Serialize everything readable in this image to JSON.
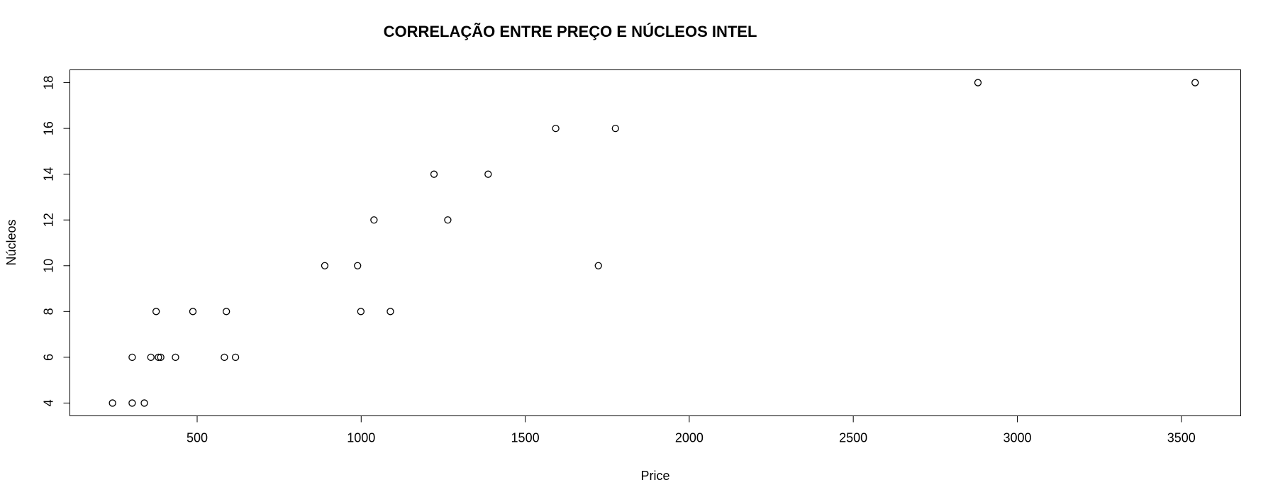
{
  "chart_data": {
    "type": "scatter",
    "title": "CORRELAÇÃO ENTRE PREÇO E NÚCLEOS INTEL",
    "xlabel": "Price",
    "ylabel": "Núcleos",
    "xlim": [
      112,
      3681
    ],
    "ylim": [
      3.44,
      18.56
    ],
    "x_ticks": [
      500,
      1000,
      1500,
      2000,
      2500,
      3000,
      3500
    ],
    "y_ticks": [
      4,
      6,
      8,
      10,
      12,
      14,
      16,
      18
    ],
    "grid": false,
    "marker": "open-circle",
    "points": [
      {
        "x": 242,
        "y": 4
      },
      {
        "x": 302,
        "y": 4
      },
      {
        "x": 339,
        "y": 4
      },
      {
        "x": 302,
        "y": 6
      },
      {
        "x": 359,
        "y": 6
      },
      {
        "x": 382,
        "y": 6
      },
      {
        "x": 389,
        "y": 6
      },
      {
        "x": 434,
        "y": 6
      },
      {
        "x": 583,
        "y": 6
      },
      {
        "x": 617,
        "y": 6
      },
      {
        "x": 375,
        "y": 8
      },
      {
        "x": 487,
        "y": 8
      },
      {
        "x": 589,
        "y": 8
      },
      {
        "x": 999,
        "y": 8
      },
      {
        "x": 1089,
        "y": 8
      },
      {
        "x": 889,
        "y": 10
      },
      {
        "x": 989,
        "y": 10
      },
      {
        "x": 1723,
        "y": 10
      },
      {
        "x": 1039,
        "y": 12
      },
      {
        "x": 1264,
        "y": 12
      },
      {
        "x": 1222,
        "y": 14
      },
      {
        "x": 1387,
        "y": 14
      },
      {
        "x": 1593,
        "y": 16
      },
      {
        "x": 1775,
        "y": 16
      },
      {
        "x": 2880,
        "y": 18
      },
      {
        "x": 3542,
        "y": 18
      }
    ]
  }
}
